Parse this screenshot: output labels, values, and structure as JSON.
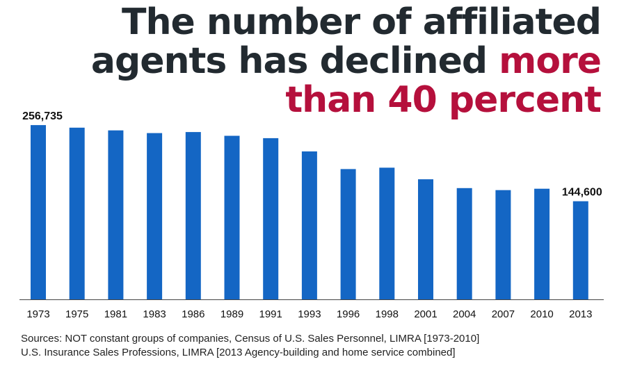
{
  "headline": {
    "line1": "The number of affiliated",
    "line2_pre": "agents has declined ",
    "line2_highlight": "more",
    "line3_highlight": "than 40 percent"
  },
  "colors": {
    "bar": "#1466c4",
    "highlight": "#b5103c",
    "title": "#222a30",
    "axis": "#444444"
  },
  "chart_data": {
    "type": "bar",
    "title": "The number of affiliated agents has declined more than 40 percent",
    "xlabel": "",
    "ylabel": "",
    "categories": [
      "1973",
      "1975",
      "1981",
      "1983",
      "1986",
      "1989",
      "1991",
      "1993",
      "1996",
      "1998",
      "2001",
      "2004",
      "2007",
      "2010",
      "2013"
    ],
    "values": [
      256735,
      253000,
      249000,
      245000,
      246500,
      241000,
      237500,
      218000,
      192000,
      194000,
      177000,
      164000,
      161000,
      163000,
      144600
    ],
    "data_labels": [
      {
        "index": 0,
        "text": "256,735"
      },
      {
        "index": 14,
        "text": "144,600"
      }
    ],
    "ylim": [
      0,
      262000
    ],
    "grid": false
  },
  "sources": {
    "line1": "Sources: NOT constant groups of companies, Census of U.S. Sales Personnel, LIMRA [1973-2010]",
    "line2": "U.S. Insurance Sales Professions, LIMRA [2013 Agency-building and home service combined]"
  }
}
